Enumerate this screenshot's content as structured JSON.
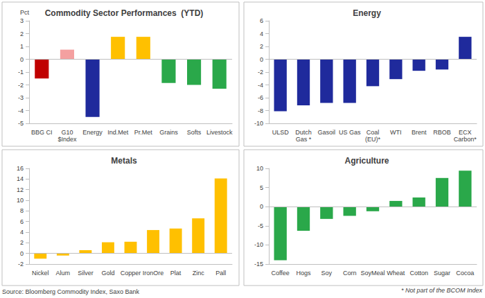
{
  "chart_data": [
    {
      "type": "bar",
      "title": "Commodity Sector Performances  (YTD)",
      "ylabel": "Pct",
      "categories": [
        "BBG CI",
        "G10\n$Index",
        "Energy",
        "Ind.Met",
        "Pr.Met",
        "Grains",
        "Softs",
        "Livestock"
      ],
      "values": [
        -1.5,
        0.75,
        -4.5,
        1.75,
        1.75,
        -1.85,
        -2.0,
        -2.3
      ],
      "colors": [
        "#c00000",
        "#f4a0a0",
        "#1f2a9c",
        "#ffc000",
        "#ffc000",
        "#2aa84a",
        "#2aa84a",
        "#2aa84a"
      ],
      "ylim": [
        -5,
        3
      ],
      "yticks": [
        -5,
        -4,
        -3,
        -2,
        -1,
        0,
        1,
        2,
        3
      ],
      "grid": false
    },
    {
      "type": "bar",
      "title": "Energy",
      "categories": [
        "ULSD",
        "Dutch\nGas *",
        "Gasoil",
        "US Gas",
        "Coal\n(EU)*",
        "WTI",
        "Brent",
        "RBOB",
        "ECX\nCarbon*"
      ],
      "values": [
        -8.1,
        -7.2,
        -6.8,
        -6.8,
        -4.2,
        -3.1,
        -1.8,
        -1.6,
        3.5
      ],
      "color": "#1f2a9c",
      "ylim": [
        -10,
        6
      ],
      "yticks": [
        -10,
        -8,
        -6,
        -4,
        -2,
        0,
        2,
        4,
        6
      ],
      "grid": false
    },
    {
      "type": "bar",
      "title": "Metals",
      "categories": [
        "Nickel",
        "Alum",
        "Silver",
        "Gold",
        "Copper",
        "IronOre",
        "Plat",
        "Zinc",
        "Pall"
      ],
      "values": [
        -1.0,
        -0.4,
        0.6,
        2.1,
        2.2,
        4.4,
        4.7,
        6.6,
        14.1
      ],
      "color": "#ffc000",
      "ylim": [
        -2,
        16
      ],
      "yticks": [
        -2,
        0,
        2,
        4,
        6,
        8,
        10,
        12,
        14,
        16
      ],
      "grid": false
    },
    {
      "type": "bar",
      "title": "Agriculture",
      "categories": [
        "Coffee",
        "Hogs",
        "Soy",
        "Corn",
        "SoyMeal",
        "Wheat",
        "Cotton",
        "Sugar",
        "Cocoa"
      ],
      "values": [
        -14.0,
        -6.3,
        -3.2,
        -2.4,
        -1.2,
        1.5,
        2.4,
        7.5,
        9.4
      ],
      "color": "#2aa84a",
      "ylim": [
        -15,
        10
      ],
      "yticks": [
        -15,
        -10,
        -5,
        0,
        5,
        10
      ],
      "grid": false
    }
  ],
  "annotations": [
    "Source: Bloomberg Commodity Index, Saxo Bank",
    "* Not part of the BCOM Index"
  ]
}
